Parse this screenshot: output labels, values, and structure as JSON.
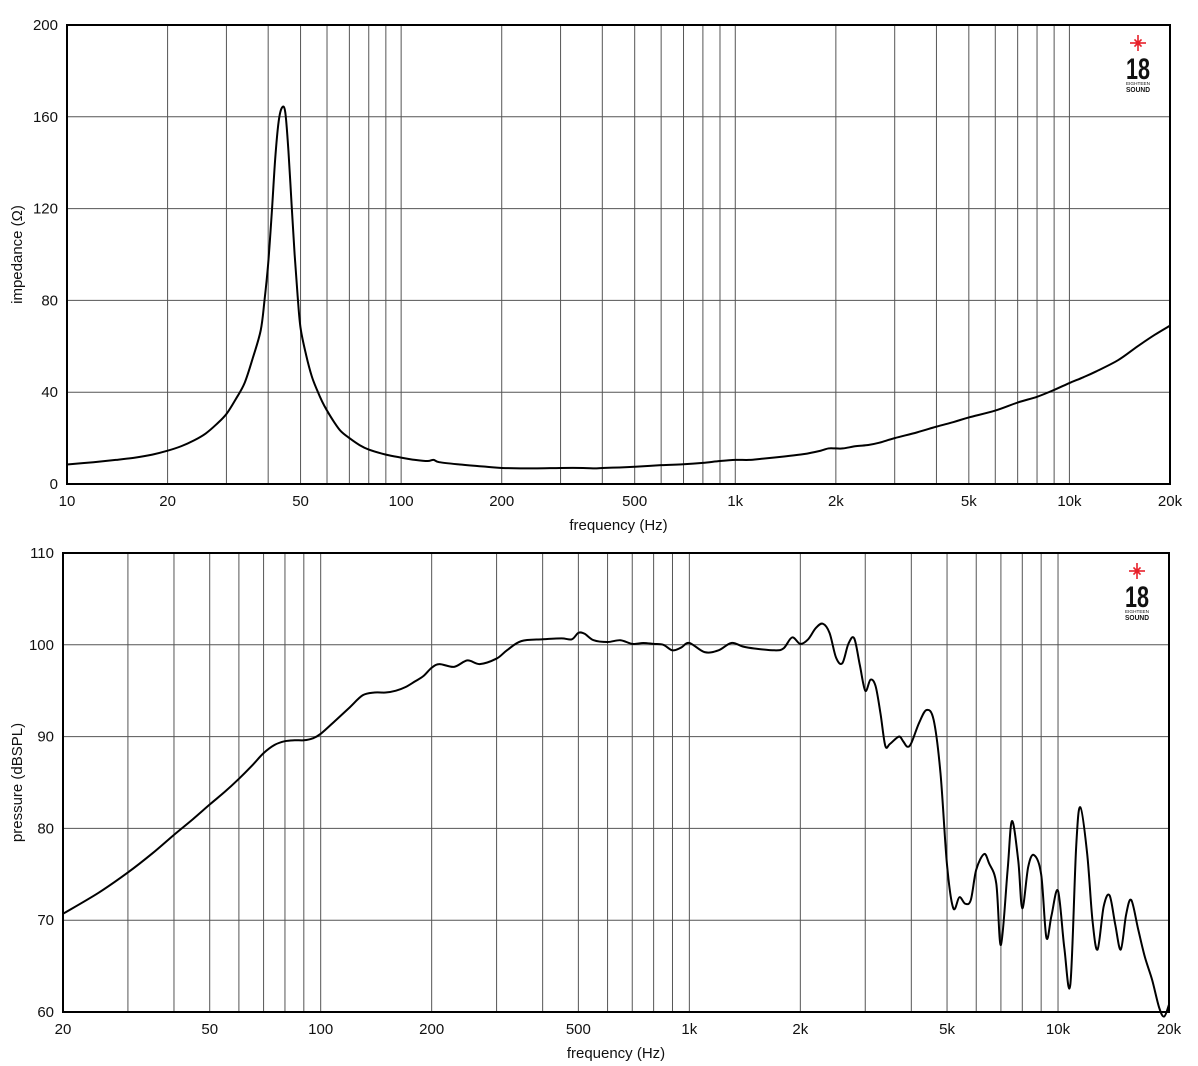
{
  "chart_data": [
    {
      "type": "line",
      "xlabel": "frequency (Hz)",
      "ylabel": "impedance (Ω)",
      "xscale": "log",
      "xlim": [
        10,
        20000
      ],
      "ylim": [
        0,
        200
      ],
      "grid": true,
      "x_tick_values": [
        10,
        20,
        50,
        100,
        200,
        500,
        1000,
        2000,
        5000,
        10000,
        20000
      ],
      "x_tick_labels": [
        "10",
        "20",
        "50",
        "100",
        "200",
        "500",
        "1k",
        "2k",
        "5k",
        "10k",
        "20k"
      ],
      "y_tick_values": [
        0,
        40,
        80,
        120,
        160,
        200
      ],
      "y_tick_labels": [
        "0",
        "40",
        "80",
        "120",
        "160",
        "200"
      ],
      "logo": {
        "number": "18",
        "line1": "EIGHTEEN",
        "line2": "SOUND",
        "star_color": "#e8202a"
      },
      "series": [
        {
          "color": "#000000",
          "x": [
            10,
            12,
            14,
            16,
            18,
            20,
            22,
            24,
            26,
            28,
            30,
            32,
            34,
            36,
            38,
            39,
            40,
            41,
            42,
            43,
            44,
            45,
            46,
            47,
            48,
            49,
            50,
            52,
            54,
            56,
            58,
            60,
            63,
            66,
            70,
            75,
            80,
            90,
            100,
            110,
            120,
            125,
            130,
            150,
            180,
            200,
            250,
            300,
            350,
            380,
            400,
            450,
            500,
            600,
            700,
            800,
            900,
            1000,
            1100,
            1200,
            1400,
            1600,
            1800,
            1900,
            2000,
            2100,
            2300,
            2500,
            2700,
            3000,
            3500,
            4000,
            4500,
            5000,
            6000,
            7000,
            8000,
            9000,
            10000,
            11000,
            12000,
            14000,
            16000,
            18000,
            20000
          ],
          "values": [
            8.5,
            9.5,
            10.5,
            11.5,
            12.8,
            14.5,
            16.5,
            19,
            22,
            26,
            30.5,
            37,
            44,
            55,
            67,
            80,
            96,
            118,
            142,
            158,
            164,
            162,
            145,
            122,
            100,
            82,
            68,
            56,
            47,
            41,
            36,
            32,
            27,
            23,
            20,
            17,
            15,
            12.8,
            11.5,
            10.5,
            10,
            10.5,
            9.5,
            8.5,
            7.5,
            7,
            6.8,
            7,
            7,
            6.8,
            7,
            7.2,
            7.5,
            8.2,
            8.6,
            9.2,
            10,
            10.5,
            10.5,
            11,
            12,
            13,
            14.5,
            15.5,
            15.5,
            15.5,
            16.5,
            17,
            18,
            20,
            22.5,
            25,
            27,
            29,
            32,
            35.5,
            38,
            41,
            44,
            46.5,
            49,
            54,
            60,
            65,
            69
          ]
        }
      ]
    },
    {
      "type": "line",
      "xlabel": "frequency (Hz)",
      "ylabel": "pressure (dBSPL)",
      "xscale": "log",
      "xlim": [
        20,
        20000
      ],
      "ylim": [
        60,
        110
      ],
      "grid": true,
      "x_tick_values": [
        20,
        50,
        100,
        200,
        500,
        1000,
        2000,
        5000,
        10000,
        20000
      ],
      "x_tick_labels": [
        "20",
        "50",
        "100",
        "200",
        "500",
        "1k",
        "2k",
        "5k",
        "10k",
        "20k"
      ],
      "y_tick_values": [
        60,
        70,
        80,
        90,
        100,
        110
      ],
      "y_tick_labels": [
        "60",
        "70",
        "80",
        "90",
        "100",
        "110"
      ],
      "logo": {
        "number": "18",
        "line1": "EIGHTEEN",
        "line2": "SOUND",
        "star_color": "#e8202a"
      },
      "series": [
        {
          "color": "#000000",
          "x": [
            20,
            25,
            30,
            35,
            40,
            45,
            50,
            55,
            60,
            65,
            70,
            75,
            80,
            85,
            90,
            95,
            100,
            110,
            120,
            130,
            140,
            150,
            160,
            170,
            180,
            190,
            200,
            210,
            230,
            250,
            270,
            300,
            320,
            350,
            400,
            450,
            480,
            500,
            520,
            550,
            600,
            650,
            700,
            750,
            800,
            850,
            900,
            950,
            1000,
            1100,
            1200,
            1300,
            1400,
            1500,
            1700,
            1800,
            1900,
            2000,
            2100,
            2200,
            2300,
            2400,
            2500,
            2600,
            2700,
            2800,
            2900,
            3000,
            3100,
            3200,
            3300,
            3400,
            3500,
            3700,
            3800,
            3900,
            4000,
            4200,
            4400,
            4600,
            4800,
            5000,
            5200,
            5400,
            5600,
            5800,
            6000,
            6300,
            6500,
            6800,
            7000,
            7300,
            7500,
            7800,
            8000,
            8300,
            8600,
            9000,
            9300,
            9600,
            10000,
            10400,
            10800,
            11200,
            11500,
            12000,
            12400,
            12800,
            13300,
            13800,
            14300,
            14800,
            15300,
            15800,
            16500,
            17200,
            18000,
            18800,
            19400,
            20000
          ],
          "values": [
            70.7,
            73,
            75.2,
            77.3,
            79.3,
            81,
            82.6,
            84,
            85.4,
            86.8,
            88.2,
            89.1,
            89.5,
            89.6,
            89.6,
            89.8,
            90.3,
            91.8,
            93.2,
            94.5,
            94.8,
            94.8,
            95,
            95.4,
            96,
            96.6,
            97.5,
            97.9,
            97.6,
            98.3,
            97.9,
            98.5,
            99.4,
            100.4,
            100.6,
            100.7,
            100.6,
            101.3,
            101.2,
            100.5,
            100.3,
            100.5,
            100.1,
            100.2,
            100.1,
            100,
            99.4,
            99.7,
            100.2,
            99.2,
            99.4,
            100.2,
            99.8,
            99.6,
            99.4,
            99.6,
            100.8,
            100.1,
            100.6,
            101.8,
            102.3,
            101.3,
            98.6,
            98,
            100.1,
            100.7,
            97.8,
            95,
            96.2,
            95.5,
            92.5,
            89,
            89.2,
            90,
            89.5,
            88.9,
            89.3,
            91.5,
            92.9,
            91.8,
            86,
            76,
            71.3,
            72.5,
            71.8,
            72.2,
            75.5,
            77.2,
            76.2,
            74,
            67.3,
            75.5,
            80.8,
            76.5,
            71.3,
            75.8,
            77.1,
            75,
            68.1,
            70.5,
            73.2,
            67,
            63,
            78,
            82.3,
            77.2,
            70,
            66.8,
            71.5,
            72.7,
            69.5,
            66.8,
            70.6,
            72.2,
            69,
            66,
            63.5,
            60.5,
            59.5,
            60.8
          ]
        }
      ]
    }
  ]
}
